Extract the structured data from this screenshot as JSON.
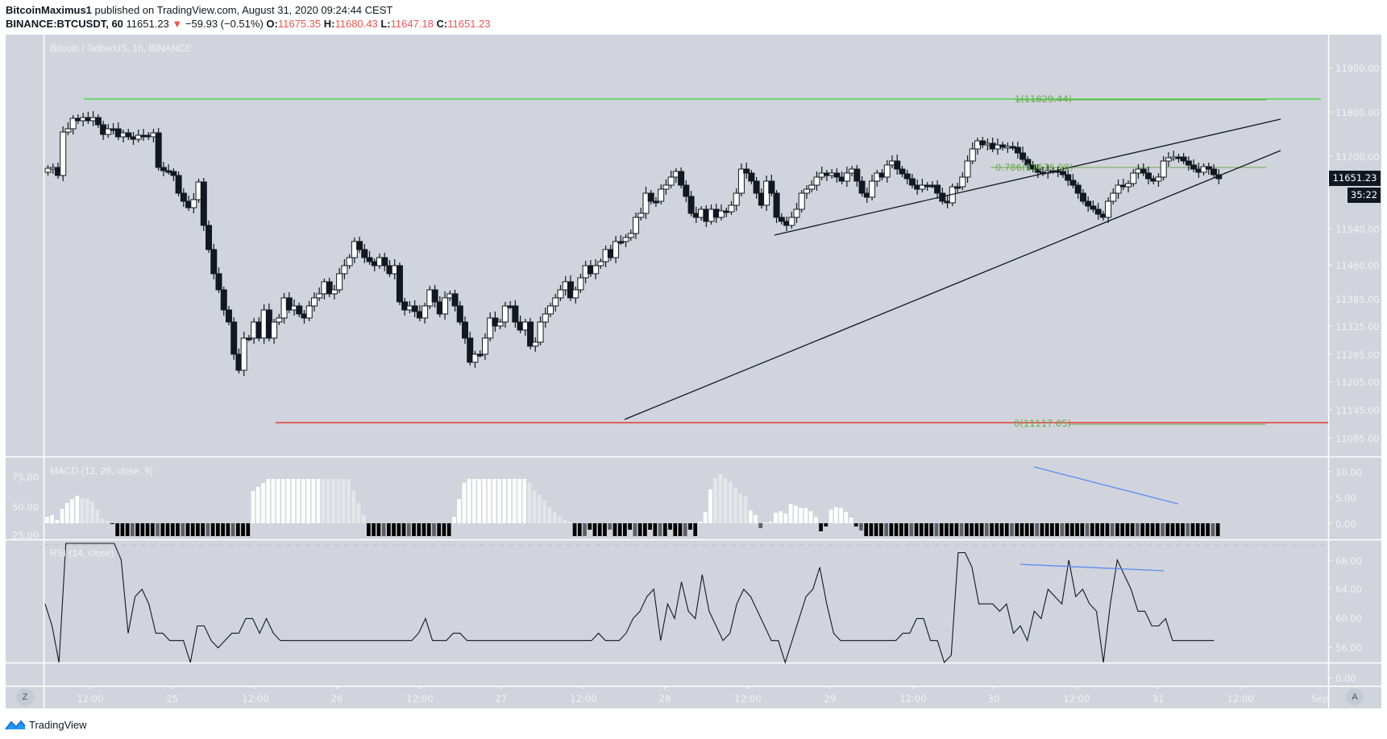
{
  "header": {
    "author": "BitcoinMaximus1",
    "published": " published on TradingView.com, August 31, 2020 09:24:44 CEST",
    "symbol": "BINANCE:BTCUSDT, 60",
    "last": "11651.23",
    "change_arrow": "▼",
    "change": "−59.93 (−0.51%)",
    "o_label": "O:",
    "o": "11675.35",
    "h_label": "H:",
    "h": "11680.43",
    "l_label": "L:",
    "l": "11647.18",
    "c_label": "C:",
    "c": "11651.23"
  },
  "chart": {
    "watermark": "Bitcoin / TetherUS, 1h, BINANCE",
    "price_axis": [
      "11900.00",
      "11800.00",
      "11700.00",
      "11540.00",
      "11460.00",
      "11385.00",
      "11325.00",
      "11265.00",
      "11205.00",
      "11145.00",
      "11085.00"
    ],
    "price_tag": "11651.23",
    "countdown": "35:22",
    "fib_levels": [
      {
        "label": "1(11829.44)"
      },
      {
        "label": "0.786(11676.98)"
      },
      {
        "label": "0(11117.05)"
      }
    ],
    "macd_title": "MACD (12, 26, close, 9)",
    "macd_right_axis": [
      "10.00",
      "5.00",
      "0.00"
    ],
    "macd_left_axis": [
      "75.00",
      "50.00",
      "25.00"
    ],
    "rsi_title": "RSI (14, close)",
    "rsi_right_axis": [
      "68.00",
      "64.00",
      "60.00",
      "56.00"
    ],
    "lower_axis": [
      "0.00"
    ],
    "time_axis": [
      "12:00",
      "25",
      "12:00",
      "26",
      "12:00",
      "27",
      "12:00",
      "28",
      "12:00",
      "29",
      "12:00",
      "30",
      "12:00",
      "31",
      "12:00",
      "Sep"
    ],
    "buttons": {
      "z": "Z",
      "a": "A"
    }
  },
  "colors": {
    "background": "#d1d4dc",
    "up_candle": "#ffffff",
    "down_candle": "#131722",
    "fib": "#6aa84f",
    "resistance": "#4cd94c",
    "support": "#e53935",
    "divergence": "#5b8def"
  },
  "footer": {
    "brand": "TradingView"
  }
}
